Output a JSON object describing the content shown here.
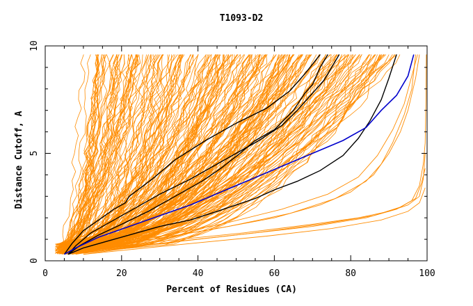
{
  "chart_data": {
    "type": "line",
    "title": "T1093-D2",
    "xlabel": "Percent of Residues (CA)",
    "ylabel": "Distance Cutoff, A",
    "xlim": [
      0,
      100
    ],
    "ylim": [
      0,
      10
    ],
    "x_ticks": [
      0,
      20,
      40,
      60,
      80,
      100
    ],
    "y_ticks": [
      0,
      5,
      10
    ],
    "grid": false,
    "legend": "none",
    "colors": {
      "models": "#ff8c00",
      "highlight": "#000000",
      "reference": "#0000cc"
    },
    "highlight_series": [
      {
        "points": [
          [
            5,
            0.3
          ],
          [
            7,
            0.8
          ],
          [
            10,
            1.4
          ],
          [
            14,
            1.9
          ],
          [
            18,
            2.4
          ],
          [
            21,
            2.7
          ],
          [
            22,
            3.0
          ],
          [
            28,
            3.8
          ],
          [
            34,
            4.7
          ],
          [
            42,
            5.6
          ],
          [
            50,
            6.4
          ],
          [
            58,
            7.1
          ],
          [
            64,
            7.9
          ],
          [
            68,
            8.7
          ],
          [
            72,
            9.6
          ]
        ]
      },
      {
        "points": [
          [
            6,
            0.3
          ],
          [
            8,
            0.7
          ],
          [
            12,
            1.3
          ],
          [
            18,
            1.9
          ],
          [
            24,
            2.5
          ],
          [
            30,
            3.1
          ],
          [
            38,
            3.8
          ],
          [
            44,
            4.4
          ],
          [
            50,
            5.0
          ],
          [
            56,
            5.6
          ],
          [
            62,
            6.3
          ],
          [
            66,
            7.0
          ],
          [
            70,
            7.8
          ],
          [
            73,
            8.4
          ],
          [
            75,
            9.0
          ],
          [
            77,
            9.6
          ]
        ]
      },
      {
        "points": [
          [
            6,
            0.3
          ],
          [
            9,
            0.7
          ],
          [
            14,
            1.2
          ],
          [
            20,
            1.7
          ],
          [
            27,
            2.3
          ],
          [
            34,
            3.0
          ],
          [
            41,
            3.7
          ],
          [
            46,
            4.3
          ],
          [
            51,
            5.0
          ],
          [
            55,
            5.6
          ],
          [
            60,
            6.1
          ],
          [
            65,
            7.0
          ],
          [
            68,
            7.8
          ],
          [
            70,
            8.2
          ],
          [
            72,
            9.0
          ],
          [
            74,
            9.6
          ]
        ]
      },
      {
        "points": [
          [
            6,
            0.3
          ],
          [
            10,
            0.6
          ],
          [
            16,
            0.9
          ],
          [
            22,
            1.2
          ],
          [
            30,
            1.6
          ],
          [
            38,
            1.9
          ],
          [
            45,
            2.3
          ],
          [
            50,
            2.6
          ],
          [
            55,
            2.9
          ],
          [
            60,
            3.3
          ],
          [
            66,
            3.7
          ],
          [
            72,
            4.2
          ],
          [
            78,
            4.9
          ],
          [
            82,
            5.7
          ],
          [
            85,
            6.5
          ],
          [
            88,
            7.5
          ],
          [
            90,
            8.5
          ],
          [
            92,
            9.6
          ]
        ]
      }
    ],
    "reference_series": {
      "points": [
        [
          5,
          0.3
        ],
        [
          8,
          0.6
        ],
        [
          14,
          1.1
        ],
        [
          22,
          1.6
        ],
        [
          30,
          2.1
        ],
        [
          38,
          2.6
        ],
        [
          46,
          3.2
        ],
        [
          54,
          3.8
        ],
        [
          62,
          4.4
        ],
        [
          70,
          5.0
        ],
        [
          78,
          5.6
        ],
        [
          84,
          6.2
        ],
        [
          88,
          7.0
        ],
        [
          92,
          7.7
        ],
        [
          95,
          8.6
        ],
        [
          96.5,
          9.6
        ]
      ]
    }
  }
}
